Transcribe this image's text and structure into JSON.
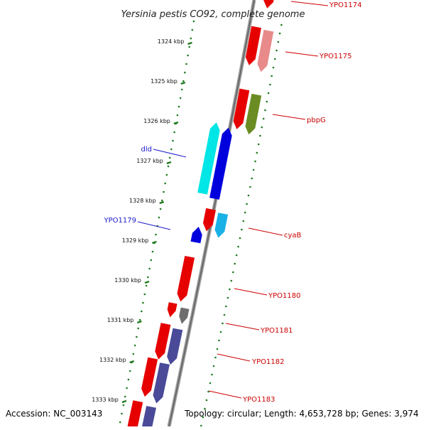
{
  "title": "Yersinia pestis CO92, complete genome",
  "footer": {
    "accession": "Accession: NC_003143",
    "topology": "Topology: circular; Length: 4,653,728 bp; Genes: 3,974"
  },
  "colors": {
    "backbone": "#8c8c8c",
    "tick": "#1f7a1f",
    "red": "#e60000",
    "pink": "#e88a8a",
    "olive": "#6b8c23",
    "cyan": "#00e5e5",
    "sky": "#1ab2e6",
    "blue": "#0000dd",
    "navy": "#4a4a99",
    "gray": "#6e6e6e"
  },
  "ticks": [
    {
      "label": "1324 kbp"
    },
    {
      "label": "1325 kbp"
    },
    {
      "label": "1326 kbp"
    },
    {
      "label": "1327 kbp"
    },
    {
      "label": "1328 kbp"
    },
    {
      "label": "1329 kbp"
    },
    {
      "label": "1330 kbp"
    },
    {
      "label": "1331 kbp"
    },
    {
      "label": "1332 kbp"
    },
    {
      "label": "1333 kbp"
    }
  ],
  "gene_labels": [
    {
      "name": "YPO1174",
      "strand": "forward"
    },
    {
      "name": "YPO1175",
      "strand": "forward"
    },
    {
      "name": "pbpG",
      "strand": "forward"
    },
    {
      "name": "dld",
      "strand": "reverse"
    },
    {
      "name": "YPO1179",
      "strand": "reverse"
    },
    {
      "name": "cyaB",
      "strand": "forward"
    },
    {
      "name": "YPO1180",
      "strand": "forward"
    },
    {
      "name": "YPO1181",
      "strand": "forward"
    },
    {
      "name": "YPO1182",
      "strand": "forward"
    },
    {
      "name": "YPO1183",
      "strand": "forward"
    }
  ]
}
